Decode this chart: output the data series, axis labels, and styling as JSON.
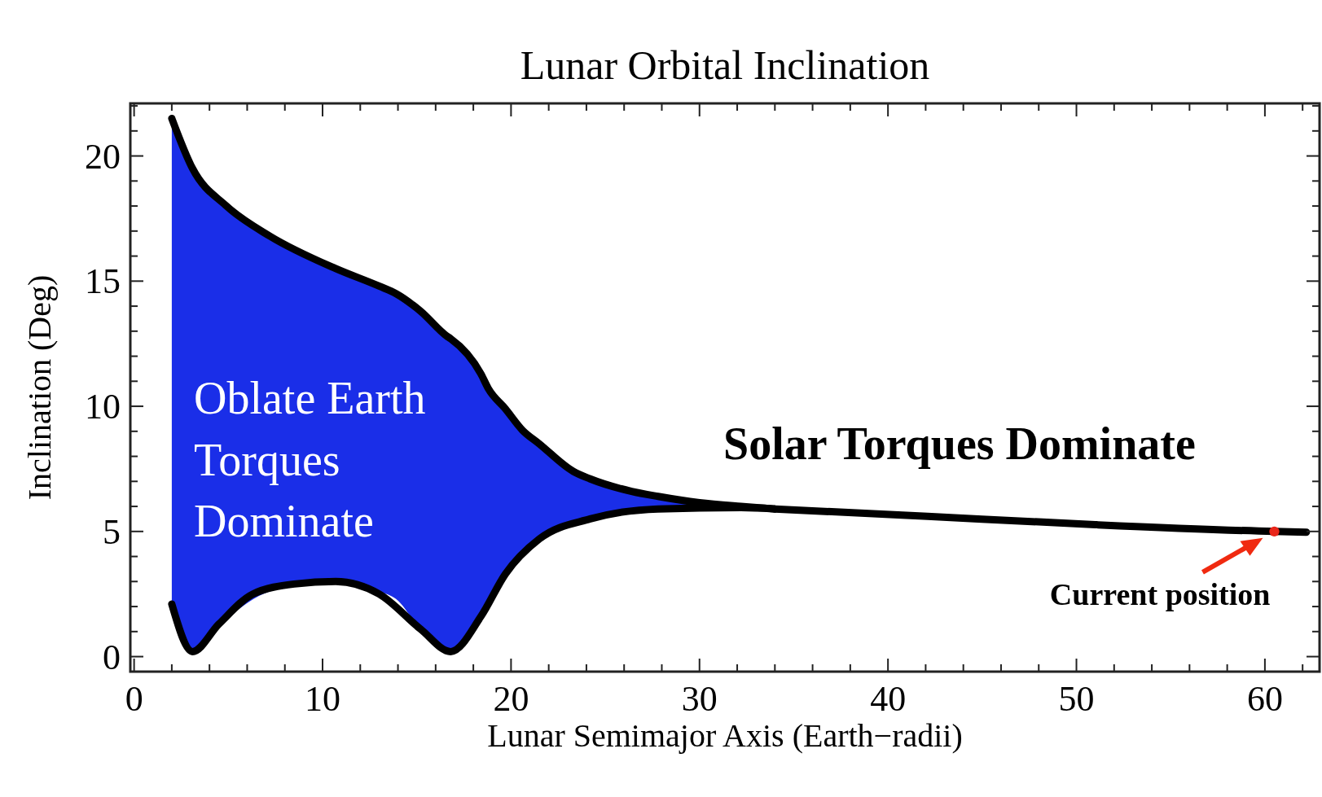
{
  "chart_data": {
    "type": "line",
    "title": "Lunar Orbital Inclination",
    "xlabel": "Lunar Semimajor Axis (Earth−radii)",
    "ylabel": "Inclination (Deg)",
    "xlim": [
      -0.2,
      62.9
    ],
    "ylim": [
      -0.6,
      22.1
    ],
    "xticks": [
      0,
      {
        "value": 2,
        "label": null
      },
      {
        "value": 4,
        "label": null
      },
      {
        "value": 6,
        "label": null
      },
      {
        "value": 8,
        "label": null
      },
      10,
      {
        "value": 12,
        "label": null
      },
      {
        "value": 14,
        "label": null
      },
      {
        "value": 16,
        "label": null
      },
      {
        "value": 18,
        "label": null
      },
      20,
      {
        "value": 22,
        "label": null
      },
      {
        "value": 24,
        "label": null
      },
      {
        "value": 26,
        "label": null
      },
      {
        "value": 28,
        "label": null
      },
      30,
      {
        "value": 32,
        "label": null
      },
      {
        "value": 34,
        "label": null
      },
      {
        "value": 36,
        "label": null
      },
      {
        "value": 38,
        "label": null
      },
      40,
      {
        "value": 42,
        "label": null
      },
      {
        "value": 44,
        "label": null
      },
      {
        "value": 46,
        "label": null
      },
      {
        "value": 48,
        "label": null
      },
      50,
      {
        "value": 52,
        "label": null
      },
      {
        "value": 54,
        "label": null
      },
      {
        "value": 56,
        "label": null
      },
      {
        "value": 58,
        "label": null
      },
      60,
      {
        "value": 62,
        "label": null
      }
    ],
    "yticks": [
      0,
      {
        "value": 1,
        "label": null
      },
      {
        "value": 2,
        "label": null
      },
      {
        "value": 3,
        "label": null
      },
      {
        "value": 4,
        "label": null
      },
      5,
      {
        "value": 6,
        "label": null
      },
      {
        "value": 7,
        "label": null
      },
      {
        "value": 8,
        "label": null
      },
      {
        "value": 9,
        "label": null
      },
      10,
      {
        "value": 11,
        "label": null
      },
      {
        "value": 12,
        "label": null
      },
      {
        "value": 13,
        "label": null
      },
      {
        "value": 14,
        "label": null
      },
      15,
      {
        "value": 16,
        "label": null
      },
      {
        "value": 17,
        "label": null
      },
      {
        "value": 18,
        "label": null
      },
      {
        "value": 19,
        "label": null
      },
      20,
      {
        "value": 21,
        "label": null
      },
      {
        "value": 22,
        "label": null
      }
    ],
    "series": [
      {
        "type": "line",
        "color": "#000000",
        "x": [
          2.0,
          3.1,
          4.9,
          7.2,
          10.7,
          13.0,
          13.9,
          15.2,
          16.6,
          16.8,
          18.4,
          18.8,
          19.7,
          20.6,
          21.5,
          23.3,
          24.2,
          26.4,
          27.8,
          30.0,
          32.2,
          34.0
        ],
        "values": [
          21.5,
          19.5,
          18.0,
          16.8,
          15.5,
          14.8,
          14.5,
          13.8,
          12.8,
          12.7,
          11.3,
          10.7,
          9.9,
          9.05,
          8.5,
          7.4,
          7.1,
          6.6,
          6.4,
          6.15,
          6.0,
          5.9
        ],
        "upper": [
          21.5,
          19.5,
          18.0,
          16.8,
          15.5,
          14.8,
          14.5,
          13.8,
          12.8,
          12.7,
          11.3,
          10.7,
          9.9,
          9.05,
          8.5,
          7.4,
          7.1,
          6.6,
          6.4,
          6.15,
          6.0,
          5.9
        ],
        "lower": [
          2.1,
          0.2,
          1.5,
          2.6,
          3.0,
          2.6,
          2.3,
          1.1,
          0.3,
          0.2,
          1.4,
          1.9,
          3.3,
          4.0,
          4.7,
          5.3,
          5.5,
          5.8,
          5.9,
          5.95,
          5.95,
          5.9
        ]
      },
      {
        "type": "line",
        "color": "#000000",
        "x": [
          2.0,
          3.1,
          4.5,
          6.3,
          8.5,
          10.7,
          13.0,
          15.2,
          16.8,
          18.4,
          19.7,
          21.5,
          24.2,
          27.8,
          32.2,
          34.0
        ],
        "values": [
          2.1,
          0.2,
          1.3,
          2.5,
          2.9,
          3.0,
          2.5,
          1.1,
          0.2,
          1.6,
          3.3,
          4.7,
          5.5,
          5.9,
          5.95,
          5.9
        ]
      },
      {
        "type": "line",
        "color": "#000000",
        "x": [
          34.0,
          42.1,
          51.0,
          60.5,
          62.2
        ],
        "values": [
          5.9,
          5.6,
          5.27,
          5.0,
          4.97
        ]
      },
      {
        "type": "scatter",
        "color": "#e8261a",
        "marker": "circle",
        "x": [
          60.5
        ],
        "values": [
          5.0
        ]
      }
    ],
    "annotations": [
      "Oblate Earth\nTorques\nDominate",
      "Solar Torques Dominate",
      {
        "text": "Current position",
        "x": 60.5,
        "y": 5.0
      }
    ]
  }
}
